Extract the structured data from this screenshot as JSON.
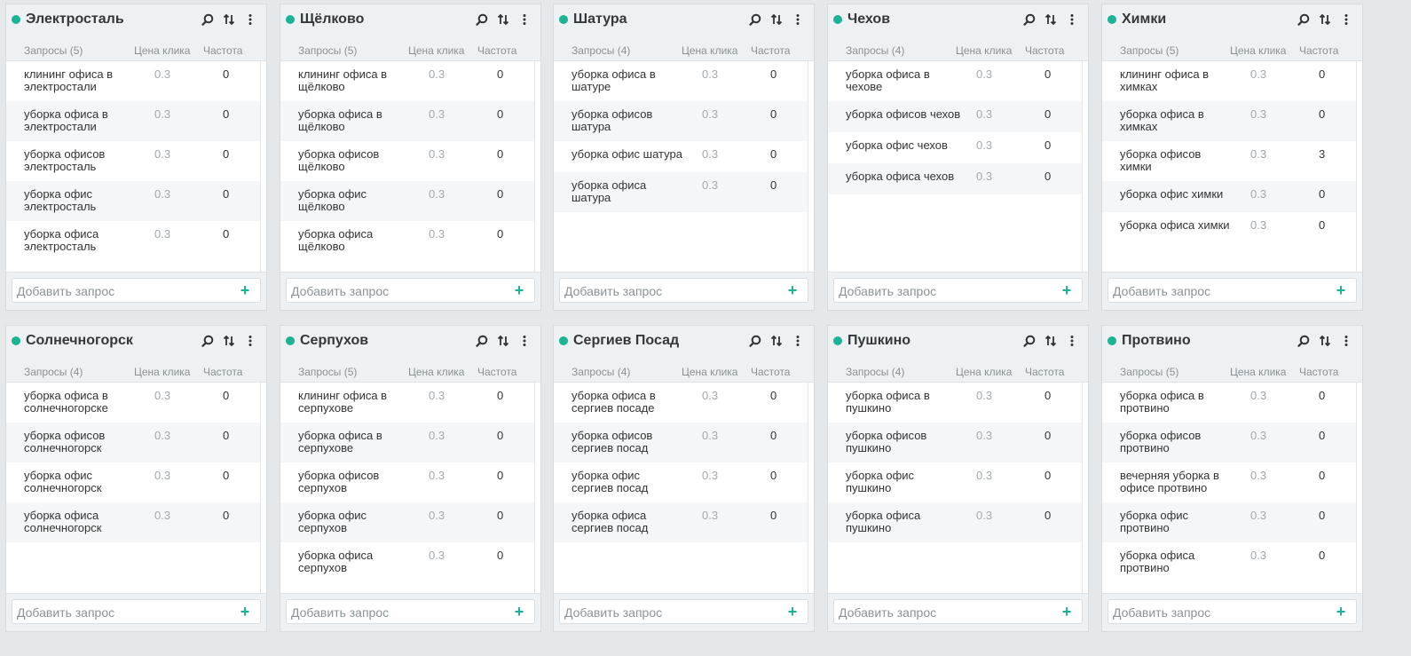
{
  "columns": {
    "queries_prefix": "Запросы",
    "price": "Цена клика",
    "freq": "Частота"
  },
  "add_placeholder": "Добавить запрос",
  "accent_color": "#1bb394",
  "icons": {
    "search": "search-icon",
    "sort": "sort-icon",
    "menu": "kebab-menu-icon",
    "add": "plus-icon"
  },
  "cards": [
    {
      "title": "Электросталь",
      "count_label": "Запросы (5)",
      "rows": [
        {
          "q": "клининг офиса в электростали",
          "p": "0.3",
          "f": "0"
        },
        {
          "q": "уборка офиса в электростали",
          "p": "0.3",
          "f": "0"
        },
        {
          "q": "уборка офисов электросталь",
          "p": "0.3",
          "f": "0"
        },
        {
          "q": "уборка офис электросталь",
          "p": "0.3",
          "f": "0"
        },
        {
          "q": "уборка офиса электросталь",
          "p": "0.3",
          "f": "0"
        }
      ]
    },
    {
      "title": "Щёлково",
      "count_label": "Запросы (5)",
      "rows": [
        {
          "q": "клининг офиса в щёлково",
          "p": "0.3",
          "f": "0"
        },
        {
          "q": "уборка офиса в щёлково",
          "p": "0.3",
          "f": "0"
        },
        {
          "q": "уборка офисов щёлково",
          "p": "0.3",
          "f": "0"
        },
        {
          "q": "уборка офис щёлково",
          "p": "0.3",
          "f": "0"
        },
        {
          "q": "уборка офиса щёлково",
          "p": "0.3",
          "f": "0"
        }
      ]
    },
    {
      "title": "Шатура",
      "count_label": "Запросы (4)",
      "rows": [
        {
          "q": "уборка офиса в шатуре",
          "p": "0.3",
          "f": "0"
        },
        {
          "q": "уборка офисов шатура",
          "p": "0.3",
          "f": "0"
        },
        {
          "q": "уборка офис шатура",
          "p": "0.3",
          "f": "0",
          "single": true
        },
        {
          "q": "уборка офиса шатура",
          "p": "0.3",
          "f": "0"
        }
      ]
    },
    {
      "title": "Чехов",
      "count_label": "Запросы (4)",
      "rows": [
        {
          "q": "уборка офиса в чехове",
          "p": "0.3",
          "f": "0"
        },
        {
          "q": "уборка офисов чехов",
          "p": "0.3",
          "f": "0",
          "single": true
        },
        {
          "q": "уборка офис чехов",
          "p": "0.3",
          "f": "0",
          "single": true
        },
        {
          "q": "уборка офиса чехов",
          "p": "0.3",
          "f": "0",
          "single": true
        }
      ]
    },
    {
      "title": "Химки",
      "count_label": "Запросы (5)",
      "rows": [
        {
          "q": "клининг офиса в химках",
          "p": "0.3",
          "f": "0"
        },
        {
          "q": "уборка офиса в химках",
          "p": "0.3",
          "f": "0"
        },
        {
          "q": "уборка офисов химки",
          "p": "0.3",
          "f": "3"
        },
        {
          "q": "уборка офис химки",
          "p": "0.3",
          "f": "0",
          "single": true
        },
        {
          "q": "уборка офиса химки",
          "p": "0.3",
          "f": "0",
          "single": true
        }
      ]
    },
    {
      "title": "Солнечногорск",
      "count_label": "Запросы (4)",
      "rows": [
        {
          "q": "уборка офиса в солнечногорске",
          "p": "0.3",
          "f": "0"
        },
        {
          "q": "уборка офисов солнечногорск",
          "p": "0.3",
          "f": "0"
        },
        {
          "q": "уборка офис солнечногорск",
          "p": "0.3",
          "f": "0"
        },
        {
          "q": "уборка офиса солнечногорск",
          "p": "0.3",
          "f": "0"
        }
      ]
    },
    {
      "title": "Серпухов",
      "count_label": "Запросы (5)",
      "rows": [
        {
          "q": "клининг офиса в серпухове",
          "p": "0.3",
          "f": "0"
        },
        {
          "q": "уборка офиса в серпухове",
          "p": "0.3",
          "f": "0"
        },
        {
          "q": "уборка офисов серпухов",
          "p": "0.3",
          "f": "0"
        },
        {
          "q": "уборка офис серпухов",
          "p": "0.3",
          "f": "0"
        },
        {
          "q": "уборка офиса серпухов",
          "p": "0.3",
          "f": "0"
        }
      ]
    },
    {
      "title": "Сергиев Посад",
      "count_label": "Запросы (4)",
      "rows": [
        {
          "q": "уборка офиса в сергиев посаде",
          "p": "0.3",
          "f": "0"
        },
        {
          "q": "уборка офисов сергиев посад",
          "p": "0.3",
          "f": "0"
        },
        {
          "q": "уборка офис сергиев посад",
          "p": "0.3",
          "f": "0"
        },
        {
          "q": "уборка офиса сергиев посад",
          "p": "0.3",
          "f": "0"
        }
      ]
    },
    {
      "title": "Пушкино",
      "count_label": "Запросы (4)",
      "rows": [
        {
          "q": "уборка офиса в пушкино",
          "p": "0.3",
          "f": "0"
        },
        {
          "q": "уборка офисов пушкино",
          "p": "0.3",
          "f": "0"
        },
        {
          "q": "уборка офис пушкино",
          "p": "0.3",
          "f": "0"
        },
        {
          "q": "уборка офиса пушкино",
          "p": "0.3",
          "f": "0"
        }
      ]
    },
    {
      "title": "Протвино",
      "count_label": "Запросы (5)",
      "rows": [
        {
          "q": "уборка офиса в протвино",
          "p": "0.3",
          "f": "0"
        },
        {
          "q": "уборка офисов протвино",
          "p": "0.3",
          "f": "0"
        },
        {
          "q": "вечерняя уборка в офисе протвино",
          "p": "0.3",
          "f": "0"
        },
        {
          "q": "уборка офис протвино",
          "p": "0.3",
          "f": "0"
        },
        {
          "q": "уборка офиса протвино",
          "p": "0.3",
          "f": "0"
        }
      ]
    }
  ]
}
